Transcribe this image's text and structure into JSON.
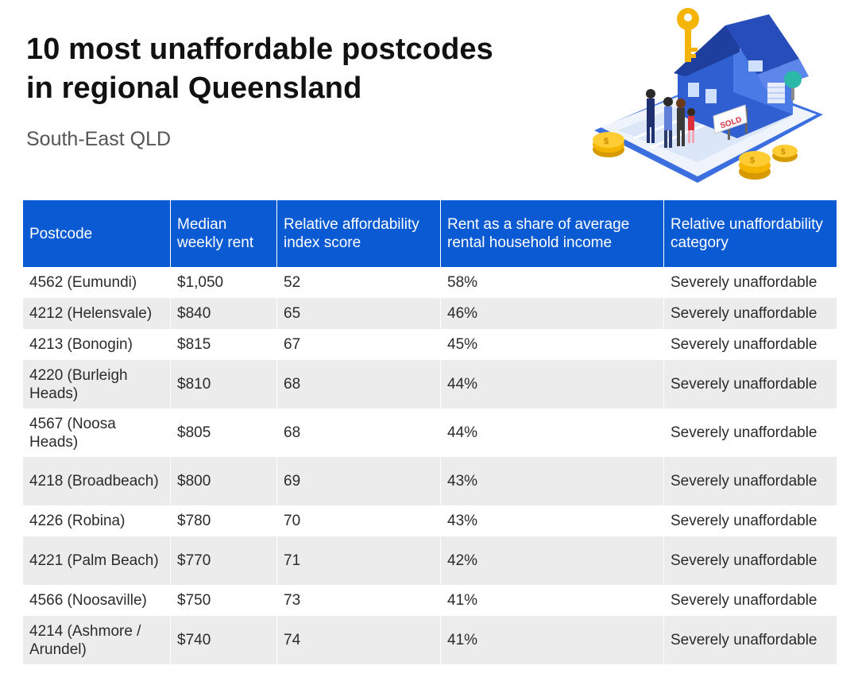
{
  "title_line1": "10 most unaffordable postcodes",
  "title_line2": "in regional Queensland",
  "subtitle": "South-East QLD",
  "illustration": {
    "sign_text": "SOLD",
    "icons": [
      "house-icon",
      "key-icon",
      "coin-stack-icon",
      "people-icon",
      "tree-icon"
    ],
    "colors": {
      "house_blue": "#2f5fd0",
      "roof_dark": "#1f3f9e",
      "coin_gold": "#f4b400",
      "sign_red": "#d9303e",
      "tree_teal": "#2bb8a8"
    }
  },
  "table": {
    "header_color": "#0a5bd3",
    "stripe_color": "#ececec",
    "columns": [
      "Postcode",
      "Median weekly rent",
      "Relative affordability index score",
      "Rent as a share of average rental household income",
      "Relative unaffordability category"
    ],
    "rows": [
      {
        "postcode": "4562 (Eumundi)",
        "rent": "$1,050",
        "score": "52",
        "share": "58%",
        "category": "Severely unaffordable"
      },
      {
        "postcode": "4212 (Helensvale)",
        "rent": "$840",
        "score": "65",
        "share": "46%",
        "category": "Severely unaffordable"
      },
      {
        "postcode": "4213 (Bonogin)",
        "rent": "$815",
        "score": "67",
        "share": "45%",
        "category": "Severely unaffordable"
      },
      {
        "postcode": "4220 (Burleigh Heads)",
        "rent": "$810",
        "score": "68",
        "share": "44%",
        "category": "Severely unaffordable"
      },
      {
        "postcode": "4567 (Noosa Heads)",
        "rent": "$805",
        "score": "68",
        "share": "44%",
        "category": "Severely unaffordable"
      },
      {
        "postcode": "4218 (Broadbeach)",
        "rent": "$800",
        "score": "69",
        "share": "43%",
        "category": "Severely unaffordable"
      },
      {
        "postcode": "4226 (Robina)",
        "rent": "$780",
        "score": "70",
        "share": "43%",
        "category": "Severely unaffordable"
      },
      {
        "postcode": "4221 (Palm Beach)",
        "rent": "$770",
        "score": "71",
        "share": "42%",
        "category": "Severely unaffordable"
      },
      {
        "postcode": "4566 (Noosaville)",
        "rent": "$750",
        "score": "73",
        "share": "41%",
        "category": "Severely unaffordable"
      },
      {
        "postcode": "4214 (Ashmore / Arundel)",
        "rent": "$740",
        "score": "74",
        "share": "41%",
        "category": "Severely unaffordable"
      }
    ]
  }
}
